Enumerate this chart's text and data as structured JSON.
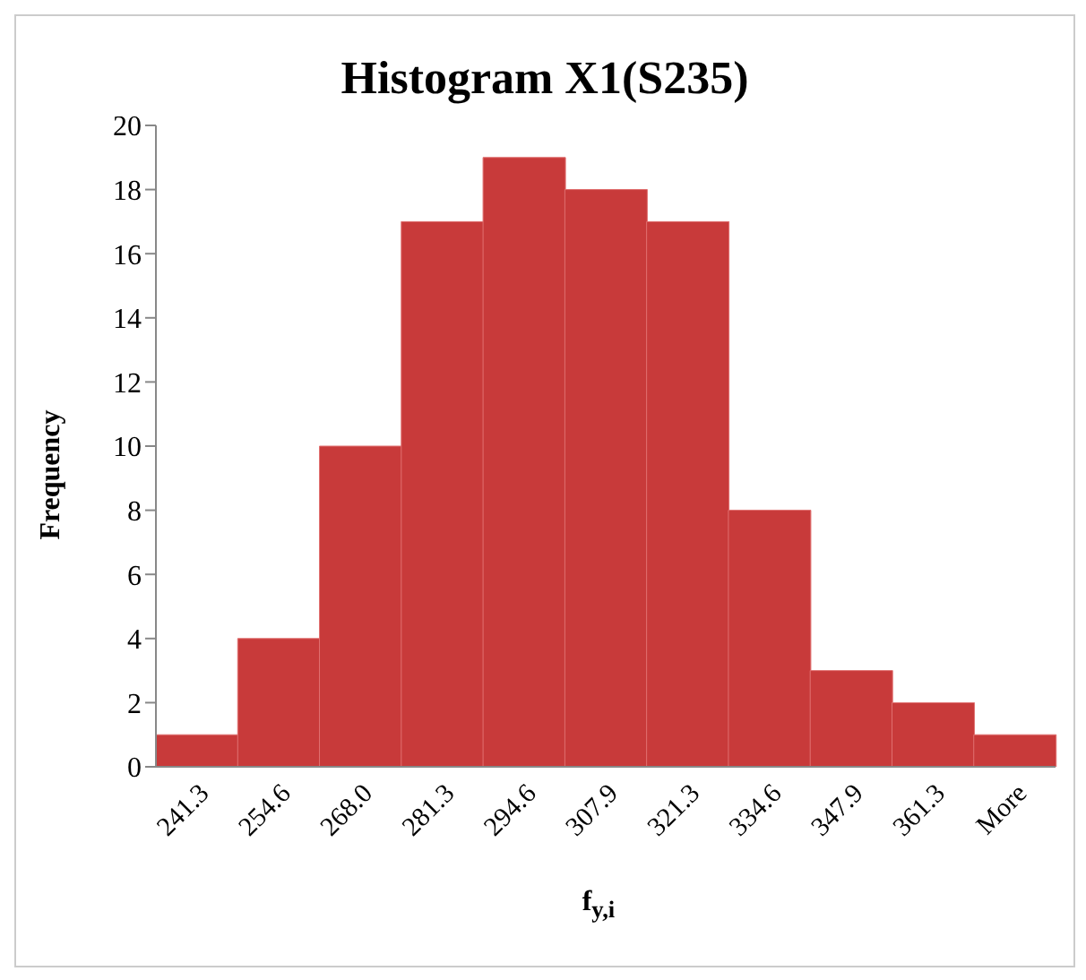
{
  "chart_data": {
    "type": "bar",
    "title": "Histogram X1(S235)",
    "xlabel": "f$_{y,i}$",
    "ylabel": "Frequency",
    "categories": [
      "241.3",
      "254.6",
      "268.0",
      "281.3",
      "294.6",
      "307.9",
      "321.3",
      "334.6",
      "347.9",
      "361.3",
      "More"
    ],
    "values": [
      1,
      4,
      10,
      17,
      19,
      18,
      17,
      8,
      3,
      2,
      1
    ],
    "color": "#c83a3a",
    "ylim": [
      0,
      20
    ],
    "yticks": [
      0,
      2,
      4,
      6,
      8,
      10,
      12,
      14,
      16,
      18,
      20
    ]
  }
}
